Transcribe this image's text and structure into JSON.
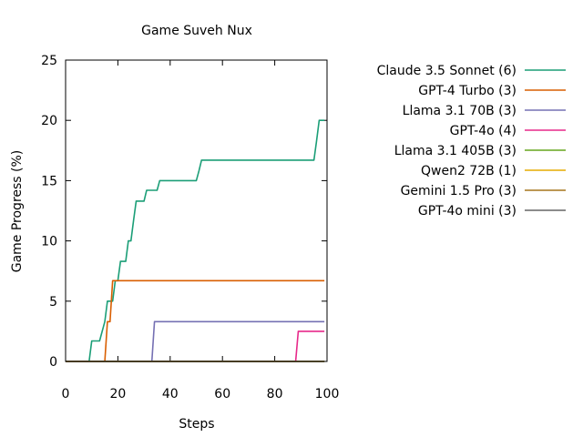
{
  "chart_data": {
    "type": "line",
    "title": "Game Suveh Nux",
    "xlabel": "Steps",
    "ylabel": "Game Progress (%)",
    "xlim": [
      0,
      100
    ],
    "ylim": [
      0,
      25
    ],
    "x_ticks": [
      0,
      20,
      40,
      60,
      80,
      100
    ],
    "y_ticks": [
      0,
      5,
      10,
      15,
      20,
      25
    ],
    "grid": false,
    "legend_position": "right",
    "series": [
      {
        "name": "Claude 3.5 Sonnet (6)",
        "color": "#1b9e77",
        "x": [
          0,
          9,
          10,
          13,
          15,
          16,
          17,
          18,
          19,
          20,
          21,
          22,
          23,
          24,
          25,
          26,
          27,
          28,
          29,
          30,
          31,
          32,
          33,
          34,
          35,
          36,
          37,
          50,
          51,
          52,
          94,
          95,
          96,
          97,
          98,
          99
        ],
        "y": [
          0,
          0,
          1.7,
          1.7,
          3.3,
          5.0,
          5.0,
          5.0,
          6.7,
          6.7,
          8.3,
          8.3,
          8.3,
          10.0,
          10.0,
          11.7,
          13.3,
          13.3,
          13.3,
          13.3,
          14.2,
          14.2,
          14.2,
          14.2,
          14.2,
          15.0,
          15.0,
          15.0,
          15.8,
          16.7,
          16.7,
          16.7,
          18.3,
          20.0,
          20.0,
          20.0
        ]
      },
      {
        "name": "GPT-4 Turbo (3)",
        "color": "#d95f02",
        "x": [
          0,
          15,
          16,
          17,
          18,
          99
        ],
        "y": [
          0,
          0,
          3.3,
          3.3,
          6.7,
          6.7
        ]
      },
      {
        "name": "Llama 3.1 70B (3)",
        "color": "#7570b3",
        "x": [
          0,
          33,
          34,
          99
        ],
        "y": [
          0,
          0,
          3.3,
          3.3
        ]
      },
      {
        "name": "GPT-4o (4)",
        "color": "#e7298a",
        "x": [
          0,
          88,
          89,
          99
        ],
        "y": [
          0,
          0,
          2.5,
          2.5
        ]
      },
      {
        "name": "Llama 3.1 405B (3)",
        "color": "#66a61e",
        "x": [
          0,
          99
        ],
        "y": [
          0,
          0
        ]
      },
      {
        "name": "Qwen2 72B (1)",
        "color": "#e6ab02",
        "x": [
          0,
          99
        ],
        "y": [
          0,
          0
        ]
      },
      {
        "name": "Gemini 1.5 Pro (3)",
        "color": "#a6761d",
        "x": [
          0,
          99
        ],
        "y": [
          0,
          0
        ]
      },
      {
        "name": "GPT-4o mini (3)",
        "color": "#666666",
        "x": [
          0,
          99
        ],
        "y": [
          0,
          0
        ]
      }
    ]
  }
}
